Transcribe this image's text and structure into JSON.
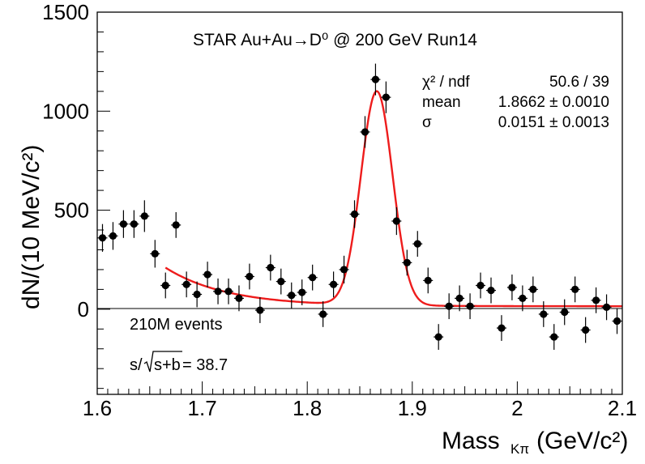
{
  "chart_data": {
    "type": "scatter",
    "title": "STAR Au+Au→D⁰ @ 200 GeV Run14",
    "xlabel": "Mass",
    "xlabel_sub": "Kπ",
    "xlabel_unit": "(GeV/c²)",
    "ylabel": "dN/(10 MeV/c²)",
    "xlim": [
      1.6,
      2.1
    ],
    "ylim": [
      -430,
      1500
    ],
    "x_ticks": [
      1.6,
      1.7,
      1.8,
      1.9,
      2.0,
      2.1
    ],
    "x_tick_labels": [
      "1.6",
      "1.7",
      "1.8",
      "1.9",
      "2",
      "2.1"
    ],
    "y_ticks": [
      0,
      500,
      1000,
      1500
    ],
    "y_tick_labels": [
      "0",
      "500",
      "1000",
      "1500"
    ],
    "grid": false,
    "stats_box": {
      "rows": [
        {
          "label": "χ² / ndf",
          "value": "50.6 / 39"
        },
        {
          "label": "mean",
          "value": "1.8662 ± 0.0010"
        },
        {
          "label": "σ",
          "value": "0.0151 ± 0.0013"
        }
      ]
    },
    "annotations": {
      "events": "210M events",
      "significance_prefix": "s/",
      "significance_radicand": "s+b",
      "significance_value": " = 38.7"
    },
    "colors": {
      "data": "#000000",
      "fit": "#ee1c1c"
    },
    "points": [
      {
        "x": 1.605,
        "y": 360,
        "err": 70
      },
      {
        "x": 1.615,
        "y": 370,
        "err": 70
      },
      {
        "x": 1.625,
        "y": 430,
        "err": 70
      },
      {
        "x": 1.635,
        "y": 430,
        "err": 70
      },
      {
        "x": 1.645,
        "y": 470,
        "err": 80
      },
      {
        "x": 1.655,
        "y": 280,
        "err": 70
      },
      {
        "x": 1.665,
        "y": 120,
        "err": 65
      },
      {
        "x": 1.675,
        "y": 425,
        "err": 65
      },
      {
        "x": 1.685,
        "y": 125,
        "err": 65
      },
      {
        "x": 1.695,
        "y": 75,
        "err": 65
      },
      {
        "x": 1.705,
        "y": 175,
        "err": 65
      },
      {
        "x": 1.715,
        "y": 90,
        "err": 65
      },
      {
        "x": 1.725,
        "y": 90,
        "err": 65
      },
      {
        "x": 1.735,
        "y": 55,
        "err": 65
      },
      {
        "x": 1.745,
        "y": 165,
        "err": 65
      },
      {
        "x": 1.755,
        "y": -5,
        "err": 65
      },
      {
        "x": 1.765,
        "y": 210,
        "err": 65
      },
      {
        "x": 1.775,
        "y": 140,
        "err": 65
      },
      {
        "x": 1.785,
        "y": 70,
        "err": 65
      },
      {
        "x": 1.795,
        "y": 85,
        "err": 65
      },
      {
        "x": 1.805,
        "y": 160,
        "err": 65
      },
      {
        "x": 1.815,
        "y": -25,
        "err": 65
      },
      {
        "x": 1.825,
        "y": 125,
        "err": 65
      },
      {
        "x": 1.835,
        "y": 200,
        "err": 70
      },
      {
        "x": 1.845,
        "y": 480,
        "err": 70
      },
      {
        "x": 1.855,
        "y": 895,
        "err": 80
      },
      {
        "x": 1.865,
        "y": 1160,
        "err": 80
      },
      {
        "x": 1.875,
        "y": 1070,
        "err": 80
      },
      {
        "x": 1.885,
        "y": 445,
        "err": 70
      },
      {
        "x": 1.895,
        "y": 235,
        "err": 65
      },
      {
        "x": 1.905,
        "y": 330,
        "err": 65
      },
      {
        "x": 1.915,
        "y": 145,
        "err": 65
      },
      {
        "x": 1.925,
        "y": -140,
        "err": 65
      },
      {
        "x": 1.935,
        "y": 15,
        "err": 65
      },
      {
        "x": 1.945,
        "y": 55,
        "err": 65
      },
      {
        "x": 1.955,
        "y": 15,
        "err": 65
      },
      {
        "x": 1.965,
        "y": 120,
        "err": 65
      },
      {
        "x": 1.975,
        "y": 95,
        "err": 65
      },
      {
        "x": 1.985,
        "y": -95,
        "err": 65
      },
      {
        "x": 1.995,
        "y": 110,
        "err": 65
      },
      {
        "x": 2.005,
        "y": 55,
        "err": 65
      },
      {
        "x": 2.015,
        "y": 100,
        "err": 65
      },
      {
        "x": 2.025,
        "y": -25,
        "err": 65
      },
      {
        "x": 2.035,
        "y": -140,
        "err": 65
      },
      {
        "x": 2.045,
        "y": -15,
        "err": 65
      },
      {
        "x": 2.055,
        "y": 100,
        "err": 65
      },
      {
        "x": 2.065,
        "y": -105,
        "err": 65
      },
      {
        "x": 2.075,
        "y": 45,
        "err": 65
      },
      {
        "x": 2.085,
        "y": 10,
        "err": 65
      },
      {
        "x": 2.095,
        "y": -60,
        "err": 65
      }
    ],
    "fit_range": [
      1.665,
      2.1
    ],
    "fit_params": {
      "mean": 1.8662,
      "sigma": 0.0151,
      "amplitude": 1080,
      "bkg_a": 195,
      "bkg_b": 0.058,
      "bkg_c": 15
    }
  }
}
